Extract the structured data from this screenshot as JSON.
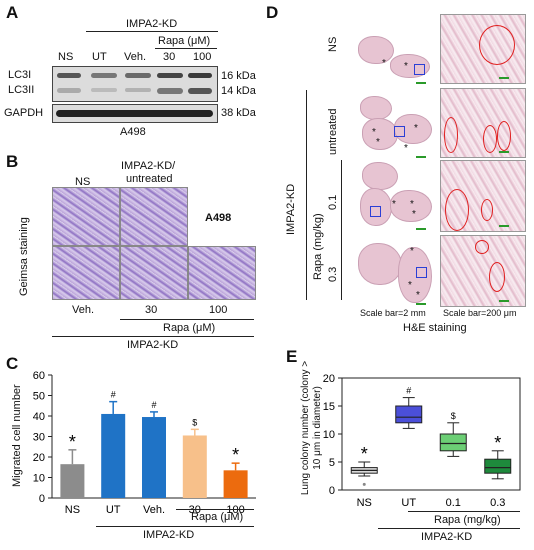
{
  "panel_a": {
    "letter": "A",
    "group_label": "IMPA2-KD",
    "rapa_label": "Rapa (μM)",
    "lanes": [
      "NS",
      "UT",
      "Veh.",
      "30",
      "100"
    ],
    "bands": [
      "LC3I",
      "LC3II",
      "GAPDH"
    ],
    "kda": [
      "16 kDa",
      "14 kDa",
      "38 kDa"
    ],
    "cell_line": "A498"
  },
  "panel_b": {
    "letter": "B",
    "col_ns": "NS",
    "col_kd": "IMPA2-KD/",
    "col_kd2": "untreated",
    "row_label": "Geimsa staining",
    "cell_line": "A498",
    "bottom_cols": [
      "Veh.",
      "30",
      "100"
    ],
    "rapa_label": "Rapa (μM)",
    "group_label": "IMPA2-KD"
  },
  "panel_c": {
    "letter": "C",
    "group_label": "IMPA2-KD",
    "rapa_label": "Rapa (μM)",
    "marks": [
      "*",
      "#",
      "#",
      "$",
      "*"
    ]
  },
  "panel_d": {
    "letter": "D",
    "rows": [
      "NS",
      "untreated",
      "0.1",
      "0.3"
    ],
    "group_label": "IMPA2-KD",
    "rapa_label": "Rapa (mg/kg)",
    "scale_left": "Scale bar=2 mm",
    "scale_right": "Scale bar=200 μm",
    "stain_label": "H&E staining"
  },
  "panel_e": {
    "letter": "E",
    "group_label": "IMPA2-KD",
    "rapa_label": "Rapa (mg/kg)",
    "marks": [
      "*",
      "#",
      "$",
      "*"
    ]
  },
  "chart_data": [
    {
      "type": "bar",
      "categories": [
        "NS",
        "UT",
        "Veh.",
        "30",
        "100"
      ],
      "values": [
        16.5,
        41,
        39.5,
        30.5,
        13.5
      ],
      "errors": [
        7,
        6,
        2.5,
        3,
        3.5
      ],
      "colors": [
        "#8c8c8c",
        "#1f73c6",
        "#1f73c6",
        "#f7c08a",
        "#ec6b0e"
      ],
      "xlabel": "",
      "ylabel": "Migrated cell number",
      "ylim": [
        0,
        60
      ],
      "yticks": [
        0,
        10,
        20,
        30,
        40,
        50,
        60
      ],
      "grid": false
    },
    {
      "type": "box",
      "categories": [
        "NS",
        "UT",
        "0.1",
        "0.3"
      ],
      "boxes": [
        {
          "min": 2.5,
          "q1": 3,
          "median": 3.5,
          "q3": 4,
          "max": 5,
          "outliers": [
            1
          ]
        },
        {
          "min": 11,
          "q1": 12,
          "median": 13,
          "q3": 15,
          "max": 16.5,
          "outliers": []
        },
        {
          "min": 6,
          "q1": 7,
          "median": 8.3,
          "q3": 10,
          "max": 12,
          "outliers": []
        },
        {
          "min": 2,
          "q1": 3,
          "median": 4,
          "q3": 5.5,
          "max": 7,
          "outliers": []
        }
      ],
      "colors": [
        "#d9d9d9",
        "#4b4fd9",
        "#6ccf75",
        "#1e8a3c"
      ],
      "xlabel": "",
      "ylabel": "Lung colony number (colony > 10 μm in diameter)",
      "ylim": [
        0,
        20
      ],
      "yticks": [
        0,
        5,
        10,
        15,
        20
      ],
      "grid": false
    }
  ]
}
